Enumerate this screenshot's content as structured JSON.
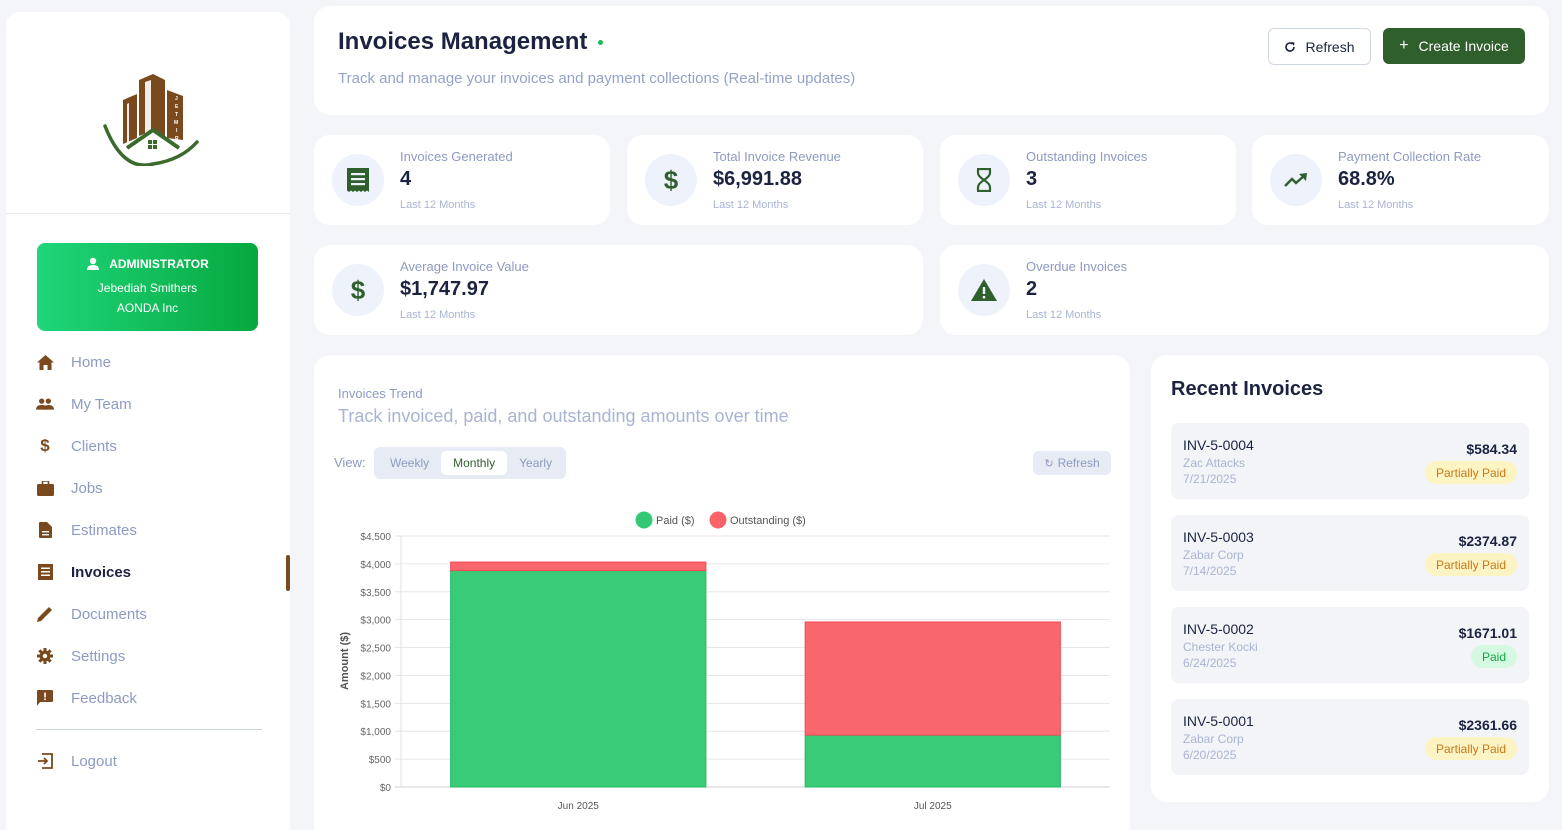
{
  "sidebar": {
    "logo_text": "JETMIR",
    "user": {
      "role": "ADMINISTRATOR",
      "name": "Jebediah Smithers",
      "company": "AONDA Inc"
    },
    "items": [
      {
        "label": "Home",
        "icon": "home-icon"
      },
      {
        "label": "My Team",
        "icon": "team-icon"
      },
      {
        "label": "Clients",
        "icon": "dollar-icon"
      },
      {
        "label": "Jobs",
        "icon": "briefcase-icon"
      },
      {
        "label": "Estimates",
        "icon": "document-icon"
      },
      {
        "label": "Invoices",
        "icon": "receipt-icon",
        "active": true
      },
      {
        "label": "Documents",
        "icon": "pencil-icon"
      },
      {
        "label": "Settings",
        "icon": "gear-icon"
      },
      {
        "label": "Feedback",
        "icon": "feedback-icon"
      }
    ],
    "logout_label": "Logout"
  },
  "header": {
    "title": "Invoices Management",
    "subtitle": "Track and manage your invoices and payment collections (Real-time updates)",
    "refresh_label": "Refresh",
    "create_label": "Create Invoice"
  },
  "stats": [
    {
      "label": "Invoices Generated",
      "value": "4",
      "period": "Last 12 Months",
      "icon": "receipt-icon"
    },
    {
      "label": "Total Invoice Revenue",
      "value": "$6,991.88",
      "period": "Last 12 Months",
      "icon": "dollar-icon"
    },
    {
      "label": "Outstanding Invoices",
      "value": "3",
      "period": "Last 12 Months",
      "icon": "hourglass-icon"
    },
    {
      "label": "Payment Collection Rate",
      "value": "68.8%",
      "period": "Last 12 Months",
      "icon": "trending-up-icon"
    },
    {
      "label": "Average Invoice Value",
      "value": "$1,747.97",
      "period": "Last 12 Months",
      "icon": "dollar-icon"
    },
    {
      "label": "Overdue Invoices",
      "value": "2",
      "period": "Last 12 Months",
      "icon": "warning-icon"
    }
  ],
  "trend": {
    "kicker": "Invoices Trend",
    "subtitle": "Track invoiced, paid, and outstanding amounts over time",
    "view_label": "View:",
    "views": [
      "Weekly",
      "Monthly",
      "Yearly"
    ],
    "selected_view": "Monthly",
    "refresh_label": "Refresh"
  },
  "chart_data": {
    "type": "bar",
    "stacked": true,
    "categories": [
      "Jun 2025",
      "Jul 2025"
    ],
    "series": [
      {
        "name": "Paid ($)",
        "color": "#33c974",
        "values": [
          3880,
          930
        ]
      },
      {
        "name": "Outstanding ($)",
        "color": "#f86268",
        "values": [
          152.67,
          2029.21
        ]
      }
    ],
    "ylabel": "Amount ($)",
    "xlabel": "",
    "ylim": [
      0,
      4500
    ],
    "yticks": [
      "$0",
      "$500",
      "$1,000",
      "$1,500",
      "$2,000",
      "$2,500",
      "$3,000",
      "$3,500",
      "$4,000",
      "$4,500"
    ],
    "ytick_values": [
      0,
      500,
      1000,
      1500,
      2000,
      2500,
      3000,
      3500,
      4000,
      4500
    ],
    "grid": true,
    "legend": "top-center"
  },
  "recent": {
    "title": "Recent Invoices",
    "invoices": [
      {
        "number": "INV-5-0004",
        "client": "Zac Attacks",
        "date": "7/21/2025",
        "amount": "$584.34",
        "status": "Partially Paid"
      },
      {
        "number": "INV-5-0003",
        "client": "Zabar Corp",
        "date": "7/14/2025",
        "amount": "$2374.87",
        "status": "Partially Paid"
      },
      {
        "number": "INV-5-0002",
        "client": "Chester Kocki",
        "date": "6/24/2025",
        "amount": "$1671.01",
        "status": "Paid"
      },
      {
        "number": "INV-5-0001",
        "client": "Zabar Corp",
        "date": "6/20/2025",
        "amount": "$2361.66",
        "status": "Partially Paid"
      }
    ]
  }
}
